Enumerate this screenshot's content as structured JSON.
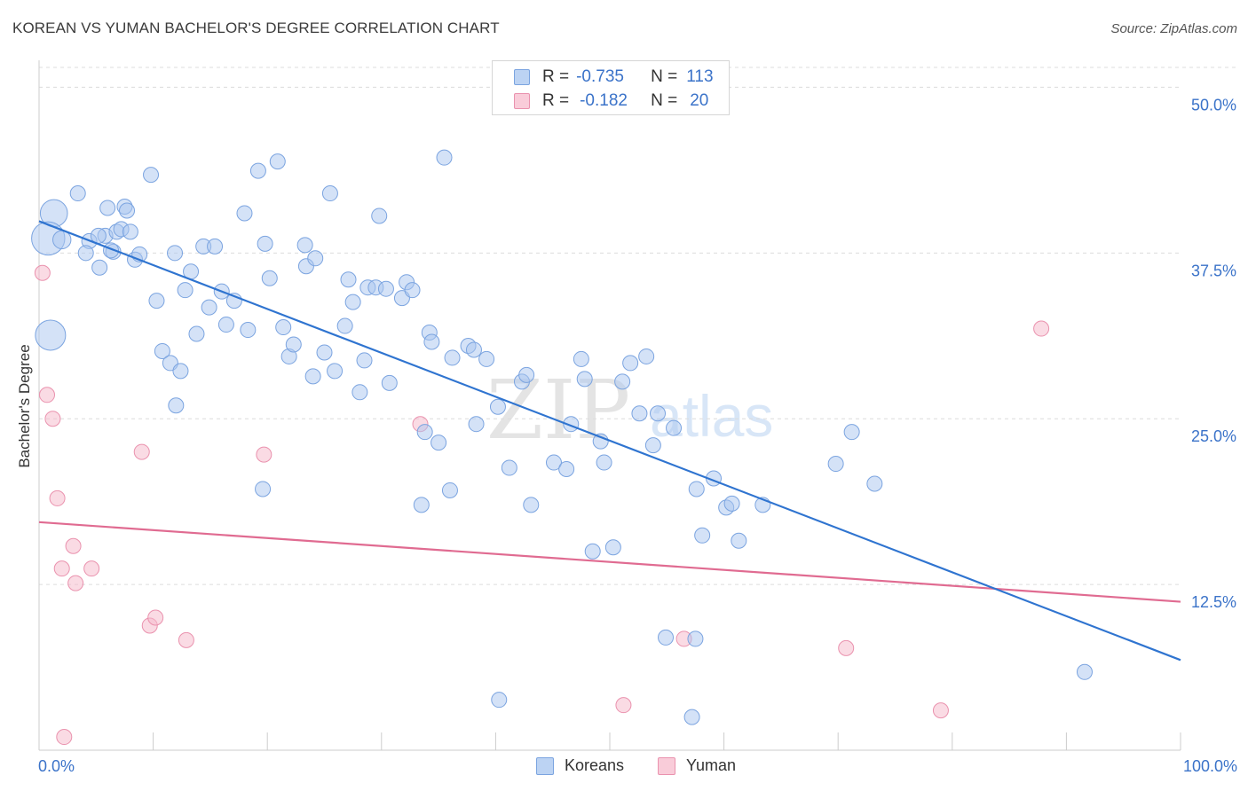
{
  "title": "KOREAN VS YUMAN BACHELOR'S DEGREE CORRELATION CHART",
  "source": "Source: ZipAtlas.com",
  "watermark": {
    "zip": "ZIP",
    "atlas": "atlas"
  },
  "legend_top": {
    "rows": [
      {
        "r_label": "R =",
        "r_value": "-0.735",
        "n_label": "N =",
        "n_value": "113"
      },
      {
        "r_label": "R =",
        "r_value": "-0.182",
        "n_label": "N =",
        "n_value": "20"
      }
    ]
  },
  "legend_bottom": {
    "items": [
      "Koreans",
      "Yuman"
    ]
  },
  "colors": {
    "korean_fill": "#a9c6ef",
    "korean_stroke": "#7ba4e0",
    "korean_line": "#2f74d0",
    "yuman_fill": "#f5b8c9",
    "yuman_stroke": "#ea92ae",
    "yuman_line": "#e06b91",
    "tick_label": "#3b73c9",
    "grid": "#dcdcdc"
  },
  "chart_data": {
    "type": "scatter",
    "title": "KOREAN VS YUMAN BACHELOR'S DEGREE CORRELATION CHART",
    "xlabel": "",
    "ylabel": "Bachelor's Degree",
    "xlim": [
      0,
      100
    ],
    "ylim": [
      0,
      51.5
    ],
    "x_tick_labels": [
      "0.0%",
      "100.0%"
    ],
    "y_ticks": [
      12.5,
      25.0,
      37.5,
      50.0
    ],
    "y_tick_labels": [
      "12.5%",
      "25.0%",
      "37.5%",
      "50.0%"
    ],
    "grid": "horizontal dashed",
    "legend_position": "bottom",
    "series": [
      {
        "name": "Koreans",
        "r": -0.735,
        "n": 113,
        "trend": {
          "x": [
            0,
            100
          ],
          "y": [
            39.9,
            6.8
          ]
        },
        "points": [
          [
            1.3,
            40.5,
            1.8
          ],
          [
            1.0,
            31.3,
            2.0
          ],
          [
            0.8,
            38.6,
            2.2
          ],
          [
            2.0,
            38.5,
            1.2
          ],
          [
            3.4,
            42.0,
            1.0
          ],
          [
            4.4,
            38.4,
            1.0
          ],
          [
            4.1,
            37.5,
            1.0
          ],
          [
            5.3,
            36.4,
            1.0
          ],
          [
            5.8,
            38.8,
            1.0
          ],
          [
            5.2,
            38.8,
            1.0
          ],
          [
            6.5,
            37.6,
            1.0
          ],
          [
            6.0,
            40.9,
            1.0
          ],
          [
            6.8,
            39.1,
            1.0
          ],
          [
            6.3,
            37.7,
            1.0
          ],
          [
            7.2,
            39.3,
            1.0
          ],
          [
            7.5,
            41.0,
            1.0
          ],
          [
            7.7,
            40.7,
            1.0
          ],
          [
            8.0,
            39.1,
            1.0
          ],
          [
            8.4,
            37.0,
            1.0
          ],
          [
            8.8,
            37.4,
            1.0
          ],
          [
            9.8,
            43.4,
            1.0
          ],
          [
            10.3,
            33.9,
            1.0
          ],
          [
            10.8,
            30.1,
            1.0
          ],
          [
            11.5,
            29.2,
            1.0
          ],
          [
            11.9,
            37.5,
            1.0
          ],
          [
            12.0,
            26.0,
            1.0
          ],
          [
            12.4,
            28.6,
            1.0
          ],
          [
            12.8,
            34.7,
            1.0
          ],
          [
            13.3,
            36.1,
            1.0
          ],
          [
            13.8,
            31.4,
            1.0
          ],
          [
            14.4,
            38.0,
            1.0
          ],
          [
            14.9,
            33.4,
            1.0
          ],
          [
            15.4,
            38.0,
            1.0
          ],
          [
            16.0,
            34.6,
            1.0
          ],
          [
            16.4,
            32.1,
            1.0
          ],
          [
            17.1,
            33.9,
            1.0
          ],
          [
            18.0,
            40.5,
            1.0
          ],
          [
            18.3,
            31.7,
            1.0
          ],
          [
            19.2,
            43.7,
            1.0
          ],
          [
            19.6,
            19.7,
            1.0
          ],
          [
            19.8,
            38.2,
            1.0
          ],
          [
            20.2,
            35.6,
            1.0
          ],
          [
            20.9,
            44.4,
            1.0
          ],
          [
            21.4,
            31.9,
            1.0
          ],
          [
            21.9,
            29.7,
            1.0
          ],
          [
            22.3,
            30.6,
            1.0
          ],
          [
            23.3,
            38.1,
            1.0
          ],
          [
            23.4,
            36.5,
            1.0
          ],
          [
            24.2,
            37.1,
            1.0
          ],
          [
            24.0,
            28.2,
            1.0
          ],
          [
            25.0,
            30.0,
            1.0
          ],
          [
            25.5,
            42.0,
            1.0
          ],
          [
            25.9,
            28.6,
            1.0
          ],
          [
            26.8,
            32.0,
            1.0
          ],
          [
            27.1,
            35.5,
            1.0
          ],
          [
            27.5,
            33.8,
            1.0
          ],
          [
            28.1,
            27.0,
            1.0
          ],
          [
            28.5,
            29.4,
            1.0
          ],
          [
            28.8,
            34.9,
            1.0
          ],
          [
            29.5,
            34.9,
            1.0
          ],
          [
            29.8,
            40.3,
            1.0
          ],
          [
            30.4,
            34.8,
            1.0
          ],
          [
            30.7,
            27.7,
            1.0
          ],
          [
            31.8,
            34.1,
            1.0
          ],
          [
            32.2,
            35.3,
            1.0
          ],
          [
            32.7,
            34.7,
            1.0
          ],
          [
            33.5,
            18.5,
            1.0
          ],
          [
            33.8,
            24.0,
            1.0
          ],
          [
            34.2,
            31.5,
            1.0
          ],
          [
            34.4,
            30.8,
            1.0
          ],
          [
            35.0,
            23.2,
            1.0
          ],
          [
            35.5,
            44.7,
            1.0
          ],
          [
            36.0,
            19.6,
            1.0
          ],
          [
            36.2,
            29.6,
            1.0
          ],
          [
            37.6,
            30.5,
            1.0
          ],
          [
            38.1,
            30.2,
            1.0
          ],
          [
            38.3,
            24.6,
            1.0
          ],
          [
            39.2,
            29.5,
            1.0
          ],
          [
            40.2,
            25.9,
            1.0
          ],
          [
            40.3,
            3.8,
            1.0
          ],
          [
            41.2,
            21.3,
            1.0
          ],
          [
            42.3,
            27.8,
            1.0
          ],
          [
            42.7,
            28.3,
            1.0
          ],
          [
            43.1,
            18.5,
            1.0
          ],
          [
            45.1,
            21.7,
            1.0
          ],
          [
            46.2,
            21.2,
            1.0
          ],
          [
            46.6,
            24.6,
            1.0
          ],
          [
            47.5,
            29.5,
            1.0
          ],
          [
            47.8,
            28.0,
            1.0
          ],
          [
            48.5,
            15.0,
            1.0
          ],
          [
            49.2,
            23.3,
            1.0
          ],
          [
            49.5,
            21.7,
            1.0
          ],
          [
            50.3,
            15.3,
            1.0
          ],
          [
            51.1,
            27.8,
            1.0
          ],
          [
            51.8,
            29.2,
            1.0
          ],
          [
            52.6,
            25.4,
            1.0
          ],
          [
            53.2,
            29.7,
            1.0
          ],
          [
            53.8,
            23.0,
            1.0
          ],
          [
            54.2,
            25.4,
            1.0
          ],
          [
            54.9,
            8.5,
            1.0
          ],
          [
            55.6,
            24.3,
            1.0
          ],
          [
            57.2,
            2.5,
            1.0
          ],
          [
            57.5,
            8.4,
            1.0
          ],
          [
            57.6,
            19.7,
            1.0
          ],
          [
            58.1,
            16.2,
            1.0
          ],
          [
            59.1,
            20.5,
            1.0
          ],
          [
            60.2,
            18.3,
            1.0
          ],
          [
            60.7,
            18.6,
            1.0
          ],
          [
            61.3,
            15.8,
            1.0
          ],
          [
            63.4,
            18.5,
            1.0
          ],
          [
            69.8,
            21.6,
            1.0
          ],
          [
            71.2,
            24.0,
            1.0
          ],
          [
            73.2,
            20.1,
            1.0
          ],
          [
            91.6,
            5.9,
            1.0
          ]
        ]
      },
      {
        "name": "Yuman",
        "r": -0.182,
        "n": 20,
        "trend": {
          "x": [
            0,
            100
          ],
          "y": [
            17.2,
            11.2
          ]
        },
        "points": [
          [
            0.3,
            36.0,
            1.0
          ],
          [
            0.7,
            26.8,
            1.0
          ],
          [
            1.2,
            25.0,
            1.0
          ],
          [
            1.6,
            19.0,
            1.0
          ],
          [
            2.0,
            13.7,
            1.0
          ],
          [
            2.2,
            1.0,
            1.0
          ],
          [
            3.0,
            15.4,
            1.0
          ],
          [
            3.2,
            12.6,
            1.0
          ],
          [
            4.6,
            13.7,
            1.0
          ],
          [
            9.0,
            22.5,
            1.0
          ],
          [
            9.7,
            9.4,
            1.0
          ],
          [
            10.2,
            10.0,
            1.0
          ],
          [
            12.9,
            8.3,
            1.0
          ],
          [
            19.7,
            22.3,
            1.0
          ],
          [
            33.4,
            24.6,
            1.0
          ],
          [
            51.2,
            3.4,
            1.0
          ],
          [
            56.5,
            8.4,
            1.0
          ],
          [
            70.7,
            7.7,
            1.0
          ],
          [
            79.0,
            3.0,
            1.0
          ],
          [
            87.8,
            31.8,
            1.0
          ]
        ]
      }
    ]
  }
}
